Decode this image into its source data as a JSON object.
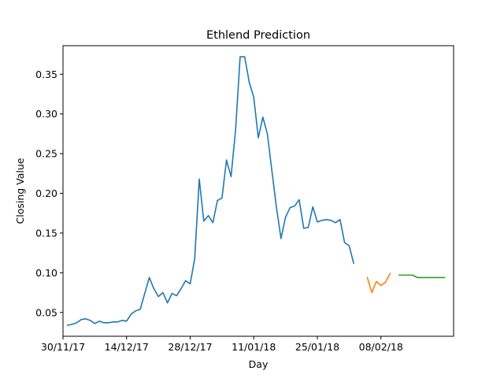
{
  "chart_data": {
    "type": "line",
    "title": "Ethlend Prediction",
    "xlabel": "Day",
    "ylabel": "Closing Value",
    "x_axis_type": "date",
    "xlim": [
      "2017-11-30",
      "2018-02-24"
    ],
    "ylim": [
      0.02,
      0.386
    ],
    "x_ticks": [
      {
        "date": "2017-11-30",
        "label": "30/11/17"
      },
      {
        "date": "2017-12-14",
        "label": "14/12/17"
      },
      {
        "date": "2017-12-28",
        "label": "28/12/17"
      },
      {
        "date": "2018-01-11",
        "label": "11/01/18"
      },
      {
        "date": "2018-01-25",
        "label": "25/01/18"
      },
      {
        "date": "2018-02-08",
        "label": "08/02/18"
      }
    ],
    "y_ticks": [
      {
        "value": 0.05,
        "label": "0.05"
      },
      {
        "value": 0.1,
        "label": "0.10"
      },
      {
        "value": 0.15,
        "label": "0.15"
      },
      {
        "value": 0.2,
        "label": "0.20"
      },
      {
        "value": 0.25,
        "label": "0.25"
      },
      {
        "value": 0.3,
        "label": "0.30"
      },
      {
        "value": 0.35,
        "label": "0.35"
      }
    ],
    "grid": false,
    "legend": false,
    "series": [
      {
        "color": "#1f77b4",
        "points": [
          [
            "2017-12-01",
            0.034
          ],
          [
            "2017-12-02",
            0.035
          ],
          [
            "2017-12-03",
            0.037
          ],
          [
            "2017-12-04",
            0.041
          ],
          [
            "2017-12-05",
            0.042
          ],
          [
            "2017-12-06",
            0.04
          ],
          [
            "2017-12-07",
            0.036
          ],
          [
            "2017-12-08",
            0.039
          ],
          [
            "2017-12-09",
            0.037
          ],
          [
            "2017-12-10",
            0.037
          ],
          [
            "2017-12-11",
            0.038
          ],
          [
            "2017-12-12",
            0.038
          ],
          [
            "2017-12-13",
            0.04
          ],
          [
            "2017-12-14",
            0.039
          ],
          [
            "2017-12-15",
            0.048
          ],
          [
            "2017-12-16",
            0.052
          ],
          [
            "2017-12-17",
            0.054
          ],
          [
            "2017-12-18",
            0.074
          ],
          [
            "2017-12-19",
            0.094
          ],
          [
            "2017-12-20",
            0.08
          ],
          [
            "2017-12-21",
            0.07
          ],
          [
            "2017-12-22",
            0.075
          ],
          [
            "2017-12-23",
            0.062
          ],
          [
            "2017-12-24",
            0.074
          ],
          [
            "2017-12-25",
            0.071
          ],
          [
            "2017-12-26",
            0.08
          ],
          [
            "2017-12-27",
            0.09
          ],
          [
            "2017-12-28",
            0.086
          ],
          [
            "2017-12-29",
            0.118
          ],
          [
            "2017-12-30",
            0.218
          ],
          [
            "2017-12-31",
            0.165
          ],
          [
            "2018-01-01",
            0.172
          ],
          [
            "2018-01-02",
            0.163
          ],
          [
            "2018-01-03",
            0.191
          ],
          [
            "2018-01-04",
            0.194
          ],
          [
            "2018-01-05",
            0.242
          ],
          [
            "2018-01-06",
            0.221
          ],
          [
            "2018-01-07",
            0.28
          ],
          [
            "2018-01-08",
            0.372
          ],
          [
            "2018-01-09",
            0.372
          ],
          [
            "2018-01-10",
            0.34
          ],
          [
            "2018-01-11",
            0.321
          ],
          [
            "2018-01-12",
            0.27
          ],
          [
            "2018-01-13",
            0.296
          ],
          [
            "2018-01-14",
            0.275
          ],
          [
            "2018-01-15",
            0.228
          ],
          [
            "2018-01-16",
            0.182
          ],
          [
            "2018-01-17",
            0.143
          ],
          [
            "2018-01-18",
            0.17
          ],
          [
            "2018-01-19",
            0.182
          ],
          [
            "2018-01-20",
            0.184
          ],
          [
            "2018-01-21",
            0.192
          ],
          [
            "2018-01-22",
            0.156
          ],
          [
            "2018-01-23",
            0.157
          ],
          [
            "2018-01-24",
            0.183
          ],
          [
            "2018-01-25",
            0.164
          ],
          [
            "2018-01-26",
            0.166
          ],
          [
            "2018-01-27",
            0.167
          ],
          [
            "2018-01-28",
            0.166
          ],
          [
            "2018-01-29",
            0.163
          ],
          [
            "2018-01-30",
            0.167
          ],
          [
            "2018-01-31",
            0.138
          ],
          [
            "2018-02-01",
            0.134
          ],
          [
            "2018-02-02",
            0.112
          ]
        ]
      },
      {
        "color": "#ff7f0e",
        "points": [
          [
            "2018-02-05",
            0.094
          ],
          [
            "2018-02-06",
            0.075
          ],
          [
            "2018-02-07",
            0.089
          ],
          [
            "2018-02-08",
            0.084
          ],
          [
            "2018-02-09",
            0.088
          ],
          [
            "2018-02-10",
            0.099
          ]
        ]
      },
      {
        "color": "#2ca02c",
        "points": [
          [
            "2018-02-12",
            0.097
          ],
          [
            "2018-02-13",
            0.097
          ],
          [
            "2018-02-14",
            0.097
          ],
          [
            "2018-02-15",
            0.097
          ],
          [
            "2018-02-16",
            0.094
          ],
          [
            "2018-02-17",
            0.094
          ],
          [
            "2018-02-18",
            0.094
          ],
          [
            "2018-02-19",
            0.094
          ],
          [
            "2018-02-20",
            0.094
          ],
          [
            "2018-02-21",
            0.094
          ],
          [
            "2018-02-22",
            0.094
          ]
        ]
      }
    ]
  }
}
